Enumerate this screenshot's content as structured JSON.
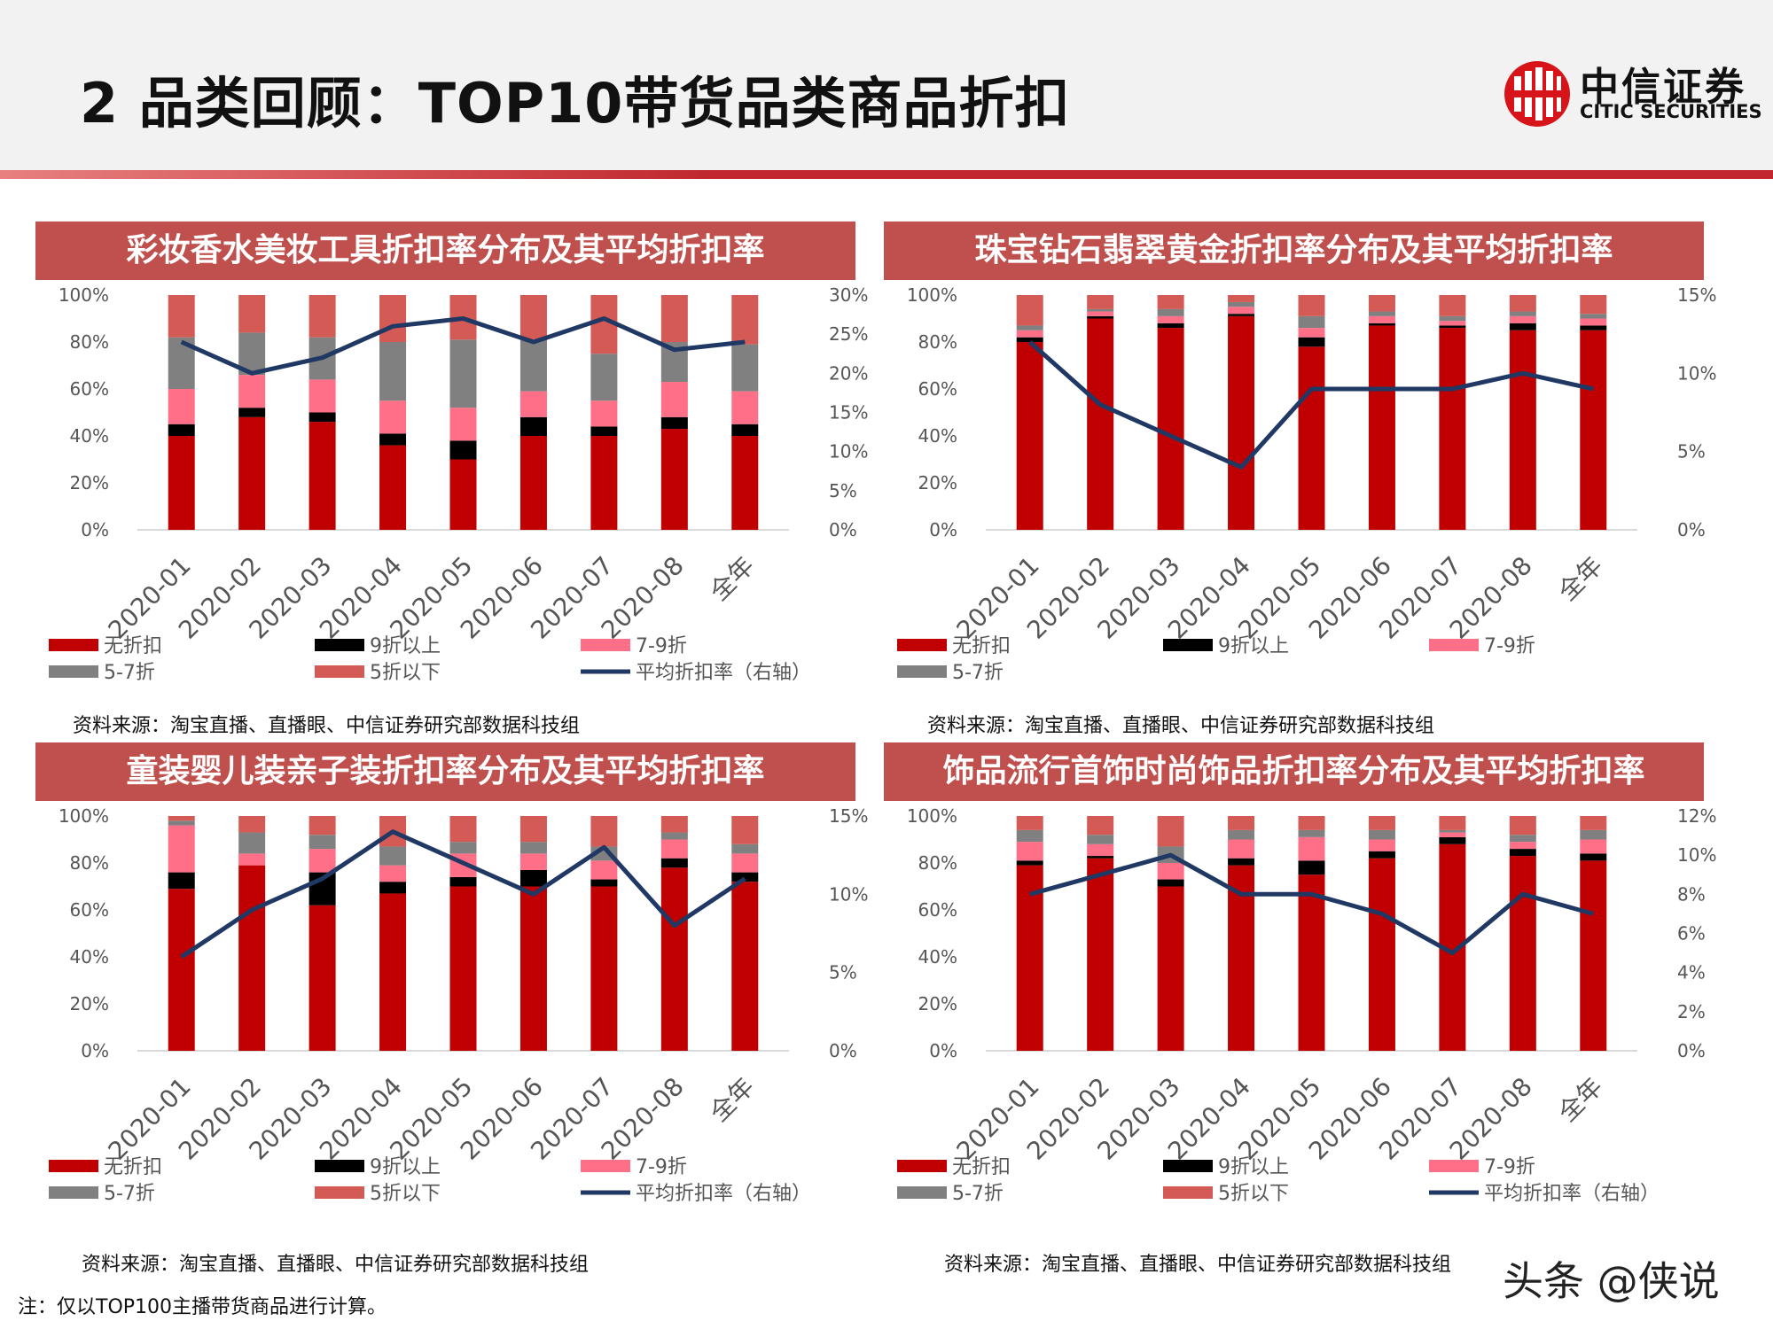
{
  "page": {
    "title": "2 品类回顾：TOP10带货品类商品折扣",
    "logo_cn": "中信证券",
    "logo_en": "CITIC SECURITIES",
    "footnote": "注：仅以TOP100主播带货商品进行计算。",
    "watermark": "头条 @侠说"
  },
  "colors": {
    "none": "#c00000",
    "ninety_plus": "#000000",
    "seventy_ninety": "#ff6f87",
    "fifty_seventy": "#808080",
    "below_fifty": "#d45a55",
    "avg_line": "#1f3864",
    "panel_title_bg": "#c0504d"
  },
  "chart_data": [
    {
      "type": "bar",
      "title": "彩妆香水美妆工具折扣率分布及其平均折扣率",
      "categories": [
        "2020-01",
        "2020-02",
        "2020-03",
        "2020-04",
        "2020-05",
        "2020-06",
        "2020-07",
        "2020-08",
        "全年"
      ],
      "y_ticks": [
        "100%",
        "80%",
        "60%",
        "40%",
        "20%",
        "0%"
      ],
      "y2_ticks": [
        "30%",
        "25%",
        "20%",
        "15%",
        "10%",
        "5%",
        "0%"
      ],
      "ylim": [
        0,
        100
      ],
      "y2lim": [
        0,
        30
      ],
      "series": [
        {
          "name": "无折扣",
          "color_key": "none",
          "values": [
            40,
            48,
            46,
            36,
            30,
            40,
            40,
            43,
            40
          ]
        },
        {
          "name": "9折以上",
          "color_key": "ninety_plus",
          "values": [
            5,
            4,
            4,
            5,
            8,
            8,
            4,
            5,
            5
          ]
        },
        {
          "name": "7-9折",
          "color_key": "seventy_ninety",
          "values": [
            15,
            14,
            14,
            14,
            14,
            11,
            11,
            15,
            14
          ]
        },
        {
          "name": "5-7折",
          "color_key": "fifty_seventy",
          "values": [
            22,
            18,
            18,
            25,
            29,
            22,
            20,
            17,
            20
          ]
        },
        {
          "name": "5折以下",
          "color_key": "below_fifty",
          "values": [
            18,
            16,
            18,
            20,
            19,
            19,
            25,
            20,
            21
          ]
        }
      ],
      "line": {
        "name": "平均折扣率（右轴）",
        "color_key": "avg_line",
        "values": [
          24,
          20,
          22,
          26,
          27,
          24,
          27,
          23,
          24
        ]
      },
      "legend": [
        {
          "label": "无折扣",
          "color_key": "none"
        },
        {
          "label": "9折以上",
          "color_key": "ninety_plus"
        },
        {
          "label": "7-9折",
          "color_key": "seventy_ninety"
        },
        {
          "label": "5-7折",
          "color_key": "fifty_seventy"
        },
        {
          "label": "5折以下",
          "color_key": "below_fifty"
        },
        {
          "label": "平均折扣率（右轴）",
          "color_key": "avg_line",
          "line": true
        }
      ],
      "source": "资料来源：淘宝直播、直播眼、中信证券研究部数据科技组"
    },
    {
      "type": "bar",
      "title": "珠宝钻石翡翠黄金折扣率分布及其平均折扣率",
      "categories": [
        "2020-01",
        "2020-02",
        "2020-03",
        "2020-04",
        "2020-05",
        "2020-06",
        "2020-07",
        "2020-08",
        "全年"
      ],
      "y_ticks": [
        "100%",
        "80%",
        "60%",
        "40%",
        "20%",
        "0%"
      ],
      "y2_ticks": [
        "15%",
        "10%",
        "5%",
        "0%"
      ],
      "ylim": [
        0,
        100
      ],
      "y2lim": [
        0,
        15
      ],
      "series": [
        {
          "name": "无折扣",
          "color_key": "none",
          "values": [
            80,
            90,
            86,
            91,
            78,
            87,
            86,
            85,
            85
          ]
        },
        {
          "name": "9折以上",
          "color_key": "ninety_plus",
          "values": [
            2,
            1,
            2,
            1,
            4,
            1,
            1,
            3,
            2
          ]
        },
        {
          "name": "7-9折",
          "color_key": "seventy_ninety",
          "values": [
            3,
            2,
            3,
            3,
            4,
            3,
            2,
            3,
            3
          ]
        },
        {
          "name": "5-7折",
          "color_key": "fifty_seventy",
          "values": [
            2,
            1,
            3,
            2,
            5,
            2,
            2,
            2,
            2
          ]
        },
        {
          "name": "5折以下",
          "color_key": "below_fifty",
          "values": [
            13,
            6,
            6,
            3,
            9,
            7,
            9,
            7,
            8
          ]
        }
      ],
      "line": {
        "name": "平均折扣率（右轴）",
        "color_key": "avg_line",
        "values": [
          12,
          8,
          6,
          4,
          9,
          9,
          9,
          10,
          9
        ]
      },
      "legend": [
        {
          "label": "无折扣",
          "color_key": "none"
        },
        {
          "label": "9折以上",
          "color_key": "ninety_plus"
        },
        {
          "label": "7-9折",
          "color_key": "seventy_ninety"
        },
        {
          "label": "5-7折",
          "color_key": "fifty_seventy"
        }
      ],
      "source": "资料来源：淘宝直播、直播眼、中信证券研究部数据科技组"
    },
    {
      "type": "bar",
      "title": "童装婴儿装亲子装折扣率分布及其平均折扣率",
      "categories": [
        "2020-01",
        "2020-02",
        "2020-03",
        "2020-04",
        "2020-05",
        "2020-06",
        "2020-07",
        "2020-08",
        "全年"
      ],
      "y_ticks": [
        "100%",
        "80%",
        "60%",
        "40%",
        "20%",
        "0%"
      ],
      "y2_ticks": [
        "15%",
        "10%",
        "5%",
        "0%"
      ],
      "ylim": [
        0,
        100
      ],
      "y2lim": [
        0,
        15
      ],
      "series": [
        {
          "name": "无折扣",
          "color_key": "none",
          "values": [
            69,
            79,
            62,
            67,
            70,
            70,
            70,
            78,
            72
          ]
        },
        {
          "name": "9折以上",
          "color_key": "ninety_plus",
          "values": [
            7,
            0,
            14,
            5,
            4,
            7,
            3,
            4,
            4
          ]
        },
        {
          "name": "7-9折",
          "color_key": "seventy_ninety",
          "values": [
            20,
            5,
            10,
            7,
            10,
            7,
            8,
            8,
            8
          ]
        },
        {
          "name": "5-7折",
          "color_key": "fifty_seventy",
          "values": [
            2,
            9,
            6,
            8,
            5,
            5,
            6,
            3,
            4
          ]
        },
        {
          "name": "5折以下",
          "color_key": "below_fifty",
          "values": [
            2,
            7,
            8,
            13,
            11,
            11,
            13,
            7,
            12
          ]
        }
      ],
      "line": {
        "name": "平均折扣率（右轴）",
        "color_key": "avg_line",
        "values": [
          6,
          9,
          11,
          14,
          12,
          10,
          13,
          8,
          11
        ]
      },
      "legend": [
        {
          "label": "无折扣",
          "color_key": "none"
        },
        {
          "label": "9折以上",
          "color_key": "ninety_plus"
        },
        {
          "label": "7-9折",
          "color_key": "seventy_ninety"
        },
        {
          "label": "5-7折",
          "color_key": "fifty_seventy"
        },
        {
          "label": "5折以下",
          "color_key": "below_fifty"
        },
        {
          "label": "平均折扣率（右轴）",
          "color_key": "avg_line",
          "line": true
        }
      ],
      "source": "资料来源：淘宝直播、直播眼、中信证券研究部数据科技组"
    },
    {
      "type": "bar",
      "title": "饰品流行首饰时尚饰品折扣率分布及其平均折扣率",
      "categories": [
        "2020-01",
        "2020-02",
        "2020-03",
        "2020-04",
        "2020-05",
        "2020-06",
        "2020-07",
        "2020-08",
        "全年"
      ],
      "y_ticks": [
        "100%",
        "80%",
        "60%",
        "40%",
        "20%",
        "0%"
      ],
      "y2_ticks": [
        "12%",
        "10%",
        "8%",
        "6%",
        "4%",
        "2%",
        "0%"
      ],
      "ylim": [
        0,
        100
      ],
      "y2lim": [
        0,
        12
      ],
      "series": [
        {
          "name": "无折扣",
          "color_key": "none",
          "values": [
            79,
            82,
            70,
            79,
            75,
            82,
            88,
            83,
            81
          ]
        },
        {
          "name": "9折以上",
          "color_key": "ninety_plus",
          "values": [
            2,
            1,
            3,
            3,
            6,
            3,
            3,
            3,
            3
          ]
        },
        {
          "name": "7-9折",
          "color_key": "seventy_ninety",
          "values": [
            8,
            5,
            7,
            8,
            10,
            5,
            2,
            3,
            6
          ]
        },
        {
          "name": "5-7折",
          "color_key": "fifty_seventy",
          "values": [
            5,
            4,
            7,
            4,
            3,
            4,
            1,
            3,
            4
          ]
        },
        {
          "name": "5折以下",
          "color_key": "below_fifty",
          "values": [
            6,
            8,
            13,
            6,
            6,
            6,
            6,
            8,
            6
          ]
        }
      ],
      "line": {
        "name": "平均折扣率（右轴）",
        "color_key": "avg_line",
        "values": [
          8,
          9,
          10,
          8,
          8,
          7,
          5,
          8,
          7
        ]
      },
      "legend": [
        {
          "label": "无折扣",
          "color_key": "none"
        },
        {
          "label": "9折以上",
          "color_key": "ninety_plus"
        },
        {
          "label": "7-9折",
          "color_key": "seventy_ninety"
        },
        {
          "label": "5-7折",
          "color_key": "fifty_seventy"
        },
        {
          "label": "5折以下",
          "color_key": "below_fifty"
        },
        {
          "label": "平均折扣率（右轴）",
          "color_key": "avg_line",
          "line": true
        }
      ],
      "source": "资料来源：淘宝直播、直播眼、中信证券研究部数据科技组"
    }
  ]
}
